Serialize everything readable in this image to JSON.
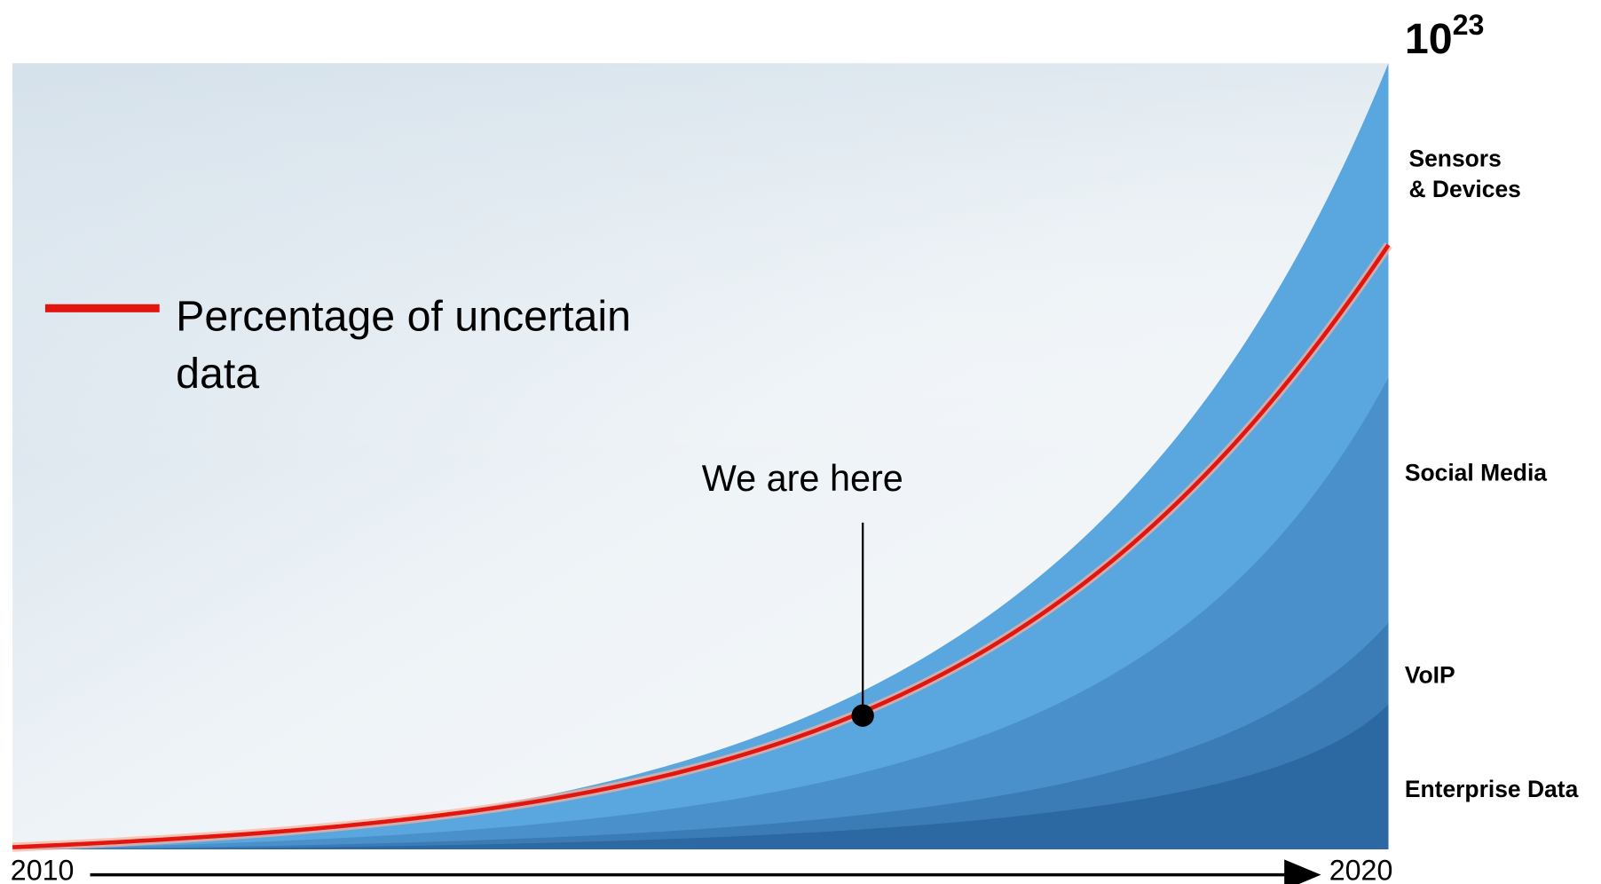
{
  "title": {
    "base": "10",
    "exponent": "23"
  },
  "layers": [
    {
      "lines": [
        "Sensors",
        "& Devices"
      ]
    },
    {
      "lines": [
        "Social Media"
      ]
    },
    {
      "lines": [
        "VoIP"
      ]
    },
    {
      "lines": [
        "Enterprise Data"
      ]
    }
  ],
  "legend": {
    "lines": [
      "Percentage of uncertain",
      "data"
    ]
  },
  "annotation": "We are here",
  "axis": {
    "start": "2010",
    "end": "2020"
  }
}
